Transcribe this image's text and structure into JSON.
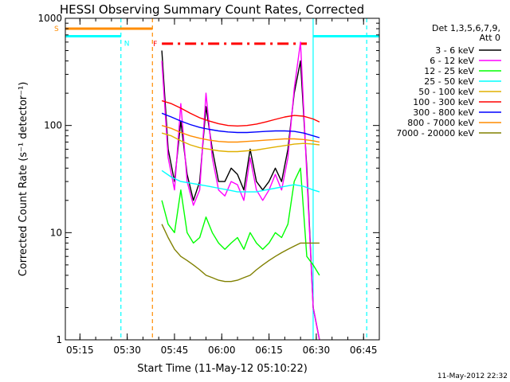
{
  "chart_data": {
    "type": "line",
    "title": "HESSI Observing Summary Count Rates, Corrected",
    "xlabel": "Start Time (11-May-12 05:10:22)",
    "ylabel": "Corrected Count Rate (s⁻¹ detector⁻¹)",
    "y_scale": "log",
    "ylim": [
      1,
      1000
    ],
    "xlim": [
      "05:10:22",
      "06:50:00"
    ],
    "x_ticks": [
      "05:15",
      "05:30",
      "05:45",
      "06:00",
      "06:15",
      "06:30",
      "06:45"
    ],
    "y_ticks": [
      "1",
      "10",
      "100",
      "1000"
    ],
    "legend_header": [
      "Det 1,3,5,6,7,9,",
      "Att 0"
    ],
    "legend_position": "right",
    "footer_date": "11-May-2012 22:32",
    "series": [
      {
        "name": "3 - 6 keV",
        "color": "#000000",
        "x": [
          "05:41",
          "05:43",
          "05:45",
          "05:47",
          "05:49",
          "05:51",
          "05:53",
          "05:55",
          "05:57",
          "05:59",
          "06:01",
          "06:03",
          "06:05",
          "06:07",
          "06:09",
          "06:11",
          "06:13",
          "06:15",
          "06:17",
          "06:19",
          "06:21",
          "06:23",
          "06:25",
          "06:27",
          "06:29",
          "06:31"
        ],
        "y": [
          500,
          60,
          30,
          110,
          35,
          20,
          30,
          150,
          60,
          30,
          30,
          40,
          35,
          25,
          60,
          30,
          25,
          30,
          40,
          30,
          60,
          200,
          400,
          40,
          2,
          1
        ]
      },
      {
        "name": "6 - 12 keV",
        "color": "#ff00ff",
        "x": [
          "05:41",
          "05:43",
          "05:45",
          "05:47",
          "05:49",
          "05:51",
          "05:53",
          "05:55",
          "05:57",
          "05:59",
          "06:01",
          "06:03",
          "06:05",
          "06:07",
          "06:09",
          "06:11",
          "06:13",
          "06:15",
          "06:17",
          "06:19",
          "06:21",
          "06:23",
          "06:25",
          "06:27",
          "06:29",
          "06:31"
        ],
        "y": [
          400,
          50,
          25,
          160,
          30,
          18,
          25,
          200,
          50,
          25,
          22,
          30,
          28,
          20,
          50,
          25,
          20,
          25,
          35,
          25,
          50,
          220,
          600,
          35,
          2,
          1
        ]
      },
      {
        "name": "12 - 25 keV",
        "color": "#00ff00",
        "x": [
          "05:41",
          "05:43",
          "05:45",
          "05:47",
          "05:49",
          "05:51",
          "05:53",
          "05:55",
          "05:57",
          "05:59",
          "06:01",
          "06:03",
          "06:05",
          "06:07",
          "06:09",
          "06:11",
          "06:13",
          "06:15",
          "06:17",
          "06:19",
          "06:21",
          "06:23",
          "06:25",
          "06:27",
          "06:29",
          "06:31"
        ],
        "y": [
          20,
          12,
          10,
          25,
          10,
          8,
          9,
          14,
          10,
          8,
          7,
          8,
          9,
          7,
          10,
          8,
          7,
          8,
          10,
          9,
          12,
          30,
          40,
          6,
          5,
          4
        ]
      },
      {
        "name": "25 - 50 keV",
        "color": "#00ffff",
        "x": [
          "05:41",
          "05:44",
          "05:47",
          "05:50",
          "05:53",
          "05:56",
          "05:59",
          "06:02",
          "06:05",
          "06:08",
          "06:11",
          "06:14",
          "06:17",
          "06:20",
          "06:23",
          "06:26",
          "06:29",
          "06:31"
        ],
        "y": [
          38,
          33,
          30,
          29,
          28,
          27,
          26,
          25,
          24,
          24,
          24,
          25,
          26,
          27,
          28,
          27,
          25,
          24
        ]
      },
      {
        "name": "50 - 100 keV",
        "color": "#e0b000",
        "x": [
          "05:41",
          "05:44",
          "05:47",
          "05:50",
          "05:53",
          "05:56",
          "05:59",
          "06:02",
          "06:05",
          "06:08",
          "06:11",
          "06:14",
          "06:17",
          "06:20",
          "06:23",
          "06:26",
          "06:29",
          "06:31"
        ],
        "y": [
          85,
          80,
          72,
          66,
          62,
          60,
          58,
          57,
          57,
          58,
          59,
          61,
          63,
          65,
          67,
          68,
          67,
          66
        ]
      },
      {
        "name": "100 - 300 keV",
        "color": "#ff0000",
        "x": [
          "05:41",
          "05:44",
          "05:47",
          "05:50",
          "05:53",
          "05:56",
          "05:59",
          "06:02",
          "06:05",
          "06:08",
          "06:11",
          "06:14",
          "06:17",
          "06:20",
          "06:23",
          "06:26",
          "06:29",
          "06:31"
        ],
        "y": [
          170,
          160,
          145,
          130,
          118,
          110,
          104,
          100,
          99,
          100,
          103,
          108,
          114,
          120,
          124,
          122,
          115,
          108
        ]
      },
      {
        "name": "300 - 800 keV",
        "color": "#0000ff",
        "x": [
          "05:41",
          "05:44",
          "05:47",
          "05:50",
          "05:53",
          "05:56",
          "05:59",
          "06:02",
          "06:05",
          "06:08",
          "06:11",
          "06:14",
          "06:17",
          "06:20",
          "06:23",
          "06:26",
          "06:29",
          "06:31"
        ],
        "y": [
          130,
          120,
          110,
          102,
          96,
          92,
          89,
          87,
          86,
          86,
          87,
          88,
          89,
          89,
          88,
          85,
          80,
          77
        ]
      },
      {
        "name": "800 - 7000 keV",
        "color": "#ff8c00",
        "x": [
          "05:41",
          "05:44",
          "05:47",
          "05:50",
          "05:53",
          "05:56",
          "05:59",
          "06:02",
          "06:05",
          "06:08",
          "06:11",
          "06:14",
          "06:17",
          "06:20",
          "06:23",
          "06:26",
          "06:29",
          "06:31"
        ],
        "y": [
          100,
          94,
          86,
          80,
          76,
          73,
          71,
          70,
          70,
          71,
          72,
          73,
          74,
          75,
          75,
          74,
          72,
          70
        ]
      },
      {
        "name": "7000 - 20000 keV",
        "color": "#808000",
        "x": [
          "05:41",
          "05:43",
          "05:45",
          "05:47",
          "05:49",
          "05:51",
          "05:53",
          "05:55",
          "05:57",
          "05:59",
          "06:01",
          "06:03",
          "06:05",
          "06:07",
          "06:09",
          "06:11",
          "06:13",
          "06:15",
          "06:17",
          "06:19",
          "06:21",
          "06:23",
          "06:25",
          "06:27",
          "06:29",
          "06:31"
        ],
        "y": [
          12,
          9,
          7,
          6,
          5.5,
          5,
          4.5,
          4,
          3.8,
          3.6,
          3.5,
          3.5,
          3.6,
          3.8,
          4,
          4.5,
          5,
          5.5,
          6,
          6.5,
          7,
          7.5,
          8,
          8,
          8,
          8
        ]
      }
    ],
    "state_bars": [
      {
        "label": "S",
        "color": "#ff8c00",
        "x0": "05:10:22",
        "x1": "05:38",
        "y": 800,
        "style": "solid"
      },
      {
        "label": "N",
        "color": "#00ffff",
        "x0": "05:10:22",
        "x1": "05:28",
        "y": 680,
        "style": "solid"
      },
      {
        "label": "",
        "color": "#00ffff",
        "x0": "06:29",
        "x1": "06:50",
        "y": 680,
        "style": "solid"
      },
      {
        "label": "F",
        "color": "#ff0000",
        "x0": "05:41",
        "x1": "06:27",
        "y": 580,
        "style": "dashdot"
      }
    ],
    "vlines": [
      {
        "x": "05:28",
        "color": "#00ffff",
        "style": "dashed"
      },
      {
        "x": "05:38",
        "color": "#ff8c00",
        "style": "dashed"
      },
      {
        "x": "06:29",
        "color": "#00ffff",
        "style": "solid"
      },
      {
        "x": "06:46",
        "color": "#00ffff",
        "style": "dashed"
      }
    ]
  }
}
